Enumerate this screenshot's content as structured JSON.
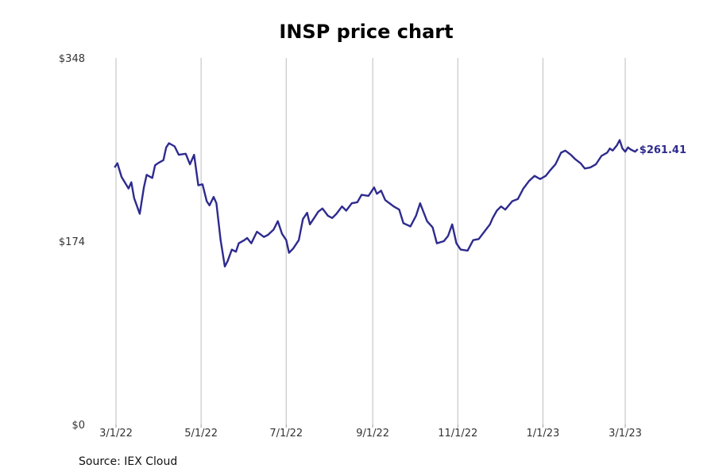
{
  "chart_data": {
    "type": "line",
    "title": "INSP price chart",
    "source": "Source: IEX Cloud",
    "ylim": [
      0,
      348
    ],
    "y_ticks": [
      0,
      174,
      348
    ],
    "y_tick_labels": [
      "$0",
      "$174",
      "$348"
    ],
    "x_ticks": [
      "2022-03-01",
      "2022-05-01",
      "2022-07-01",
      "2022-09-01",
      "2022-11-01",
      "2023-01-01",
      "2023-03-01"
    ],
    "x_tick_labels": [
      "3/1/22",
      "5/1/22",
      "7/1/22",
      "9/1/22",
      "11/1/22",
      "1/1/23",
      "3/1/23"
    ],
    "grid": "vertical",
    "line_color": "#2e2b8e",
    "last_value_label": "$261.41",
    "series": [
      {
        "values": [
          [
            "2022-02-28",
            244
          ],
          [
            "2022-03-02",
            248
          ],
          [
            "2022-03-05",
            235
          ],
          [
            "2022-03-10",
            224
          ],
          [
            "2022-03-12",
            230
          ],
          [
            "2022-03-14",
            215
          ],
          [
            "2022-03-18",
            200
          ],
          [
            "2022-03-21",
            225
          ],
          [
            "2022-03-23",
            237
          ],
          [
            "2022-03-27",
            234
          ],
          [
            "2022-03-29",
            246
          ],
          [
            "2022-03-31",
            248
          ],
          [
            "2022-04-04",
            251
          ],
          [
            "2022-04-06",
            263
          ],
          [
            "2022-04-08",
            267
          ],
          [
            "2022-04-12",
            264
          ],
          [
            "2022-04-15",
            256
          ],
          [
            "2022-04-20",
            257
          ],
          [
            "2022-04-23",
            247
          ],
          [
            "2022-04-26",
            256
          ],
          [
            "2022-04-29",
            227
          ],
          [
            "2022-05-02",
            228
          ],
          [
            "2022-05-05",
            212
          ],
          [
            "2022-05-07",
            208
          ],
          [
            "2022-05-10",
            216
          ],
          [
            "2022-05-12",
            210
          ],
          [
            "2022-05-15",
            175
          ],
          [
            "2022-05-18",
            150
          ],
          [
            "2022-05-20",
            155
          ],
          [
            "2022-05-23",
            166
          ],
          [
            "2022-05-26",
            164
          ],
          [
            "2022-05-28",
            172
          ],
          [
            "2022-06-01",
            175
          ],
          [
            "2022-06-03",
            177
          ],
          [
            "2022-06-06",
            172
          ],
          [
            "2022-06-10",
            183
          ],
          [
            "2022-06-15",
            178
          ],
          [
            "2022-06-18",
            180
          ],
          [
            "2022-06-22",
            185
          ],
          [
            "2022-06-25",
            193
          ],
          [
            "2022-06-28",
            181
          ],
          [
            "2022-07-01",
            175
          ],
          [
            "2022-07-03",
            163
          ],
          [
            "2022-07-06",
            167
          ],
          [
            "2022-07-10",
            175
          ],
          [
            "2022-07-13",
            195
          ],
          [
            "2022-07-16",
            201
          ],
          [
            "2022-07-18",
            190
          ],
          [
            "2022-07-21",
            196
          ],
          [
            "2022-07-24",
            202
          ],
          [
            "2022-07-27",
            205
          ],
          [
            "2022-07-31",
            198
          ],
          [
            "2022-08-03",
            196
          ],
          [
            "2022-08-06",
            200
          ],
          [
            "2022-08-10",
            207
          ],
          [
            "2022-08-13",
            203
          ],
          [
            "2022-08-17",
            210
          ],
          [
            "2022-08-21",
            211
          ],
          [
            "2022-08-24",
            218
          ],
          [
            "2022-08-29",
            217
          ],
          [
            "2022-09-02",
            225
          ],
          [
            "2022-09-04",
            219
          ],
          [
            "2022-09-07",
            222
          ],
          [
            "2022-09-10",
            213
          ],
          [
            "2022-09-14",
            209
          ],
          [
            "2022-09-16",
            207
          ],
          [
            "2022-09-20",
            204
          ],
          [
            "2022-09-23",
            191
          ],
          [
            "2022-09-28",
            188
          ],
          [
            "2022-10-02",
            198
          ],
          [
            "2022-10-05",
            210
          ],
          [
            "2022-10-07",
            203
          ],
          [
            "2022-10-10",
            193
          ],
          [
            "2022-10-14",
            187
          ],
          [
            "2022-10-17",
            172
          ],
          [
            "2022-10-22",
            174
          ],
          [
            "2022-10-25",
            179
          ],
          [
            "2022-10-28",
            190
          ],
          [
            "2022-10-31",
            172
          ],
          [
            "2022-11-03",
            166
          ],
          [
            "2022-11-08",
            165
          ],
          [
            "2022-11-12",
            175
          ],
          [
            "2022-11-16",
            176
          ],
          [
            "2022-11-20",
            183
          ],
          [
            "2022-11-24",
            190
          ],
          [
            "2022-11-26",
            196
          ],
          [
            "2022-11-29",
            203
          ],
          [
            "2022-12-02",
            207
          ],
          [
            "2022-12-05",
            204
          ],
          [
            "2022-12-10",
            212
          ],
          [
            "2022-12-14",
            214
          ],
          [
            "2022-12-18",
            224
          ],
          [
            "2022-12-22",
            231
          ],
          [
            "2022-12-26",
            236
          ],
          [
            "2022-12-30",
            233
          ],
          [
            "2023-01-03",
            236
          ],
          [
            "2023-01-06",
            241
          ],
          [
            "2023-01-10",
            247
          ],
          [
            "2023-01-14",
            258
          ],
          [
            "2023-01-17",
            260
          ],
          [
            "2023-01-21",
            256
          ],
          [
            "2023-01-24",
            252
          ],
          [
            "2023-01-28",
            248
          ],
          [
            "2023-01-31",
            243
          ],
          [
            "2023-02-04",
            244
          ],
          [
            "2023-02-08",
            247
          ],
          [
            "2023-02-12",
            255
          ],
          [
            "2023-02-16",
            258
          ],
          [
            "2023-02-18",
            262
          ],
          [
            "2023-02-20",
            260
          ],
          [
            "2023-02-23",
            265
          ],
          [
            "2023-02-25",
            270
          ],
          [
            "2023-02-27",
            262
          ],
          [
            "2023-03-01",
            259
          ],
          [
            "2023-03-03",
            263
          ],
          [
            "2023-03-05",
            261
          ],
          [
            "2023-03-08",
            259
          ],
          [
            "2023-03-10",
            261.41
          ]
        ]
      }
    ]
  }
}
